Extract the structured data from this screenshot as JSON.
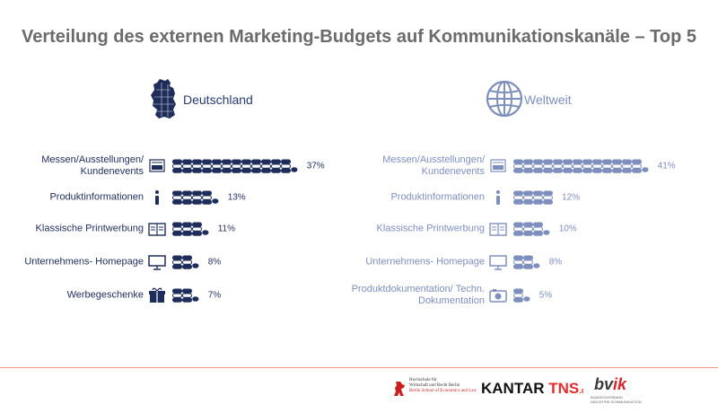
{
  "title": "Verteilung des externen Marketing-Budgets auf Kommunikationskanäle – Top 5",
  "colors": {
    "de": "#1f2d5c",
    "ww": "#7f8fbd",
    "accent_line": "#f29a86"
  },
  "chart_data": [
    {
      "type": "bar",
      "title": "Deutschland",
      "categories": [
        "Messen/Ausstellungen/ Kundenevents",
        "Produktinformationen",
        "Klassische Printwerbung",
        "Unternehmens- Homepage",
        "Werbegeschenke"
      ],
      "values": [
        37,
        13,
        11,
        8,
        7
      ],
      "value_labels": [
        "37%",
        "13%",
        "11%",
        "8%",
        "7%"
      ],
      "icons": [
        "trade-fair-icon",
        "info-icon",
        "newspaper-icon",
        "monitor-icon",
        "gift-icon"
      ]
    },
    {
      "type": "bar",
      "title": "Weltweit",
      "categories": [
        "Messen/Ausstellungen/ Kundenevents",
        "Produktinformationen",
        "Klassische Printwerbung",
        "Unternehmens- Homepage",
        "Produktdokumentation/ Techn. Dokumentation"
      ],
      "values": [
        41,
        12,
        10,
        8,
        5
      ],
      "value_labels": [
        "41%",
        "12%",
        "10%",
        "8%",
        "5%"
      ],
      "icons": [
        "trade-fair-icon",
        "info-icon",
        "newspaper-icon",
        "monitor-icon",
        "camera-icon"
      ]
    }
  ],
  "panels": {
    "de": {
      "name": "Deutschland",
      "icon": "germany-map-icon"
    },
    "ww": {
      "name": "Weltweit",
      "icon": "globe-icon"
    }
  },
  "logos": {
    "hwr": [
      "Hochschule für",
      "Wirtschaft und Recht Berlin",
      "Berlin School of Economics and Law"
    ],
    "kantar": "KANTAR",
    "tns": "TNS",
    "bvik_b": "bv",
    "bvik_r": "ik",
    "bvik_sub": [
      "BUNDESVERBAND",
      "INDUSTRIE KOMMUNIKATION"
    ]
  }
}
